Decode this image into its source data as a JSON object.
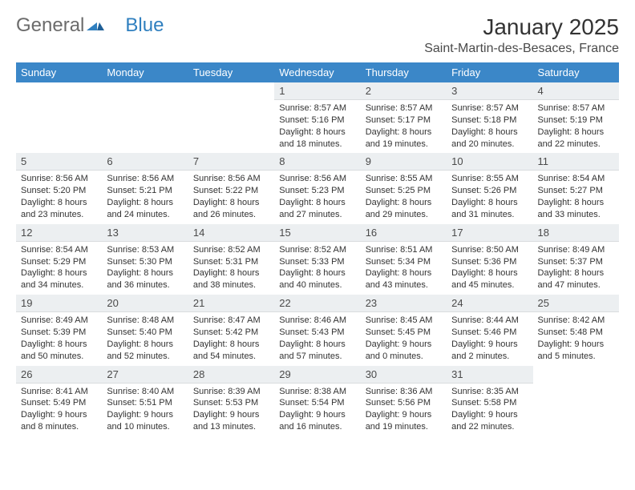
{
  "brand": {
    "part1": "General",
    "part2": "Blue"
  },
  "title": "January 2025",
  "location": "Saint-Martin-des-Besaces, France",
  "colors": {
    "header_bg": "#3b87c8",
    "header_text": "#ffffff",
    "daynum_bg": "#eceff1",
    "text": "#333333",
    "logo_gray": "#6b6b6b",
    "logo_blue": "#2f7fbf"
  },
  "day_headers": [
    "Sunday",
    "Monday",
    "Tuesday",
    "Wednesday",
    "Thursday",
    "Friday",
    "Saturday"
  ],
  "weeks": [
    [
      null,
      null,
      null,
      {
        "n": "1",
        "sr": "8:57 AM",
        "ss": "5:16 PM",
        "dl": "8 hours and 18 minutes."
      },
      {
        "n": "2",
        "sr": "8:57 AM",
        "ss": "5:17 PM",
        "dl": "8 hours and 19 minutes."
      },
      {
        "n": "3",
        "sr": "8:57 AM",
        "ss": "5:18 PM",
        "dl": "8 hours and 20 minutes."
      },
      {
        "n": "4",
        "sr": "8:57 AM",
        "ss": "5:19 PM",
        "dl": "8 hours and 22 minutes."
      }
    ],
    [
      {
        "n": "5",
        "sr": "8:56 AM",
        "ss": "5:20 PM",
        "dl": "8 hours and 23 minutes."
      },
      {
        "n": "6",
        "sr": "8:56 AM",
        "ss": "5:21 PM",
        "dl": "8 hours and 24 minutes."
      },
      {
        "n": "7",
        "sr": "8:56 AM",
        "ss": "5:22 PM",
        "dl": "8 hours and 26 minutes."
      },
      {
        "n": "8",
        "sr": "8:56 AM",
        "ss": "5:23 PM",
        "dl": "8 hours and 27 minutes."
      },
      {
        "n": "9",
        "sr": "8:55 AM",
        "ss": "5:25 PM",
        "dl": "8 hours and 29 minutes."
      },
      {
        "n": "10",
        "sr": "8:55 AM",
        "ss": "5:26 PM",
        "dl": "8 hours and 31 minutes."
      },
      {
        "n": "11",
        "sr": "8:54 AM",
        "ss": "5:27 PM",
        "dl": "8 hours and 33 minutes."
      }
    ],
    [
      {
        "n": "12",
        "sr": "8:54 AM",
        "ss": "5:29 PM",
        "dl": "8 hours and 34 minutes."
      },
      {
        "n": "13",
        "sr": "8:53 AM",
        "ss": "5:30 PM",
        "dl": "8 hours and 36 minutes."
      },
      {
        "n": "14",
        "sr": "8:52 AM",
        "ss": "5:31 PM",
        "dl": "8 hours and 38 minutes."
      },
      {
        "n": "15",
        "sr": "8:52 AM",
        "ss": "5:33 PM",
        "dl": "8 hours and 40 minutes."
      },
      {
        "n": "16",
        "sr": "8:51 AM",
        "ss": "5:34 PM",
        "dl": "8 hours and 43 minutes."
      },
      {
        "n": "17",
        "sr": "8:50 AM",
        "ss": "5:36 PM",
        "dl": "8 hours and 45 minutes."
      },
      {
        "n": "18",
        "sr": "8:49 AM",
        "ss": "5:37 PM",
        "dl": "8 hours and 47 minutes."
      }
    ],
    [
      {
        "n": "19",
        "sr": "8:49 AM",
        "ss": "5:39 PM",
        "dl": "8 hours and 50 minutes."
      },
      {
        "n": "20",
        "sr": "8:48 AM",
        "ss": "5:40 PM",
        "dl": "8 hours and 52 minutes."
      },
      {
        "n": "21",
        "sr": "8:47 AM",
        "ss": "5:42 PM",
        "dl": "8 hours and 54 minutes."
      },
      {
        "n": "22",
        "sr": "8:46 AM",
        "ss": "5:43 PM",
        "dl": "8 hours and 57 minutes."
      },
      {
        "n": "23",
        "sr": "8:45 AM",
        "ss": "5:45 PM",
        "dl": "9 hours and 0 minutes."
      },
      {
        "n": "24",
        "sr": "8:44 AM",
        "ss": "5:46 PM",
        "dl": "9 hours and 2 minutes."
      },
      {
        "n": "25",
        "sr": "8:42 AM",
        "ss": "5:48 PM",
        "dl": "9 hours and 5 minutes."
      }
    ],
    [
      {
        "n": "26",
        "sr": "8:41 AM",
        "ss": "5:49 PM",
        "dl": "9 hours and 8 minutes."
      },
      {
        "n": "27",
        "sr": "8:40 AM",
        "ss": "5:51 PM",
        "dl": "9 hours and 10 minutes."
      },
      {
        "n": "28",
        "sr": "8:39 AM",
        "ss": "5:53 PM",
        "dl": "9 hours and 13 minutes."
      },
      {
        "n": "29",
        "sr": "8:38 AM",
        "ss": "5:54 PM",
        "dl": "9 hours and 16 minutes."
      },
      {
        "n": "30",
        "sr": "8:36 AM",
        "ss": "5:56 PM",
        "dl": "9 hours and 19 minutes."
      },
      {
        "n": "31",
        "sr": "8:35 AM",
        "ss": "5:58 PM",
        "dl": "9 hours and 22 minutes."
      },
      null
    ]
  ],
  "labels": {
    "sunrise": "Sunrise:",
    "sunset": "Sunset:",
    "daylight": "Daylight:"
  }
}
